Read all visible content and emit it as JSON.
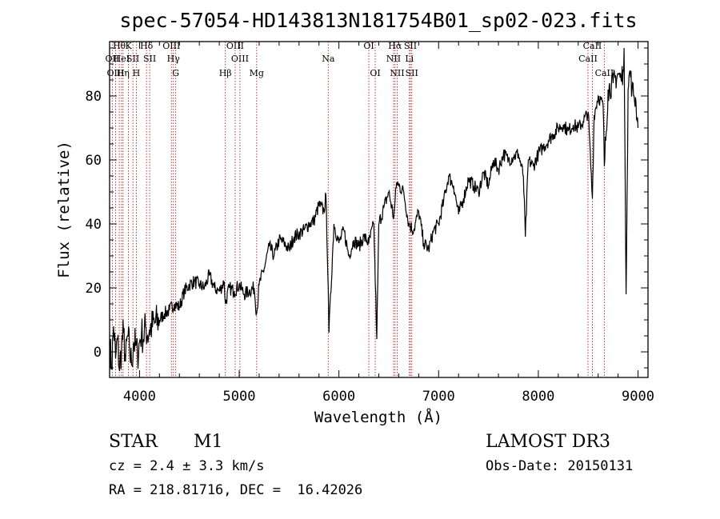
{
  "chart_data": {
    "type": "line",
    "title": "spec-57054-HD143813N181754B01_sp02-023.fits",
    "xlabel": "Wavelength (Å)",
    "ylabel": "Flux (relative)",
    "xlim": [
      3700,
      9100
    ],
    "ylim": [
      -8,
      97
    ],
    "x_ticks": [
      4000,
      5000,
      6000,
      7000,
      8000,
      9000
    ],
    "y_ticks": [
      0,
      20,
      40,
      60,
      80
    ],
    "grid": false,
    "series": [
      {
        "name": "flux",
        "x": [
          3700,
          3720,
          3740,
          3760,
          3780,
          3800,
          3820,
          3840,
          3860,
          3880,
          3900,
          3920,
          3940,
          3960,
          3980,
          4000,
          4020,
          4040,
          4060,
          4080,
          4100,
          4150,
          4200,
          4250,
          4300,
          4350,
          4400,
          4450,
          4500,
          4550,
          4600,
          4650,
          4700,
          4750,
          4800,
          4850,
          4861,
          4900,
          4950,
          5000,
          5050,
          5100,
          5150,
          5175,
          5200,
          5250,
          5300,
          5350,
          5400,
          5450,
          5500,
          5550,
          5600,
          5650,
          5700,
          5750,
          5800,
          5850,
          5870,
          5893,
          5900,
          5950,
          6000,
          6050,
          6100,
          6150,
          6200,
          6250,
          6300,
          6350,
          6380,
          6400,
          6450,
          6500,
          6550,
          6563,
          6580,
          6600,
          6650,
          6700,
          6750,
          6800,
          6850,
          6900,
          6950,
          7000,
          7050,
          7100,
          7150,
          7200,
          7250,
          7300,
          7350,
          7400,
          7450,
          7500,
          7550,
          7600,
          7650,
          7700,
          7750,
          7800,
          7850,
          7870,
          7900,
          7950,
          8000,
          8050,
          8100,
          8150,
          8200,
          8250,
          8300,
          8350,
          8400,
          8450,
          8500,
          8542,
          8560,
          8600,
          8650,
          8662,
          8700,
          8750,
          8800,
          8830,
          8850,
          8860,
          8880,
          8900,
          8920,
          8940,
          8960,
          8980,
          9000
        ],
        "y": [
          3,
          -5,
          8,
          -2,
          4,
          -6,
          2,
          6,
          -3,
          5,
          1,
          -4,
          3,
          2,
          -1,
          3,
          6,
          4,
          8,
          5,
          7,
          9,
          10,
          12,
          13,
          15,
          14,
          19,
          21,
          22,
          21,
          20,
          24,
          20,
          19,
          22,
          15,
          20,
          19,
          21,
          18,
          19,
          20,
          12,
          21,
          26,
          33,
          30,
          35,
          34,
          32,
          36,
          37,
          38,
          40,
          41,
          46,
          44,
          49,
          20,
          6,
          40,
          34,
          38,
          30,
          35,
          33,
          36,
          34,
          40,
          4,
          40,
          45,
          50,
          42,
          47,
          53,
          52,
          50,
          40,
          38,
          44,
          34,
          32,
          38,
          40,
          47,
          55,
          52,
          43,
          48,
          54,
          52,
          50,
          56,
          52,
          60,
          57,
          62,
          60,
          61,
          62,
          55,
          36,
          60,
          58,
          62,
          64,
          66,
          68,
          70,
          71,
          69,
          71,
          70,
          72,
          75,
          48,
          74,
          80,
          77,
          58,
          82,
          84,
          87,
          85,
          88,
          95,
          18,
          82,
          88,
          82,
          80,
          78,
          70
        ]
      }
    ],
    "line_markers": [
      {
        "label": "Hθ",
        "x": 3797,
        "row": 1
      },
      {
        "label": "OII",
        "x": 3727,
        "row": 2
      },
      {
        "label": "OIII",
        "x": 3760,
        "row": 3
      },
      {
        "label": "HeI",
        "x": 3820,
        "row": 2
      },
      {
        "label": "Hη",
        "x": 3835,
        "row": 3
      },
      {
        "label": "K",
        "x": 3889,
        "row": 1
      },
      {
        "label": "SII",
        "x": 3934,
        "row": 2
      },
      {
        "label": "H",
        "x": 3968,
        "row": 3
      },
      {
        "label": "Hδ",
        "x": 4070,
        "row": 1
      },
      {
        "label": "SII",
        "x": 4102,
        "row": 2
      },
      {
        "label": "OIII",
        "x": 4320,
        "row": 1
      },
      {
        "label": "Hγ",
        "x": 4340,
        "row": 2
      },
      {
        "label": "G",
        "x": 4363,
        "row": 3
      },
      {
        "label": "Hβ",
        "x": 4861,
        "row": 3
      },
      {
        "label": "OIII",
        "x": 4959,
        "row": 1
      },
      {
        "label": "OIII",
        "x": 5007,
        "row": 2
      },
      {
        "label": "Mg",
        "x": 5175,
        "row": 3
      },
      {
        "label": "Na",
        "x": 5893,
        "row": 2
      },
      {
        "label": "OI",
        "x": 6300,
        "row": 1
      },
      {
        "label": "OI",
        "x": 6364,
        "row": 3
      },
      {
        "label": "Hα",
        "x": 6563,
        "row": 1
      },
      {
        "label": "NII",
        "x": 6548,
        "row": 2
      },
      {
        "label": "NII",
        "x": 6584,
        "row": 3
      },
      {
        "label": "SII",
        "x": 6717,
        "row": 1
      },
      {
        "label": "Li",
        "x": 6707,
        "row": 2
      },
      {
        "label": "SII",
        "x": 6731,
        "row": 3
      },
      {
        "label": "CaII",
        "x": 8542,
        "row": 1
      },
      {
        "label": "CaII",
        "x": 8498,
        "row": 2
      },
      {
        "label": "CaII",
        "x": 8662,
        "row": 3
      }
    ]
  },
  "info": {
    "object_class": "STAR",
    "subclass": "M1",
    "survey": "LAMOST DR3",
    "redshift": "cz = 2.4 ± 3.3 km/s",
    "obs_date": "Obs-Date: 20150131",
    "coords": "RA = 218.81716, DEC =  16.42026"
  },
  "colors": {
    "spectrum": "#000000",
    "line_marker": "#b22222",
    "axis": "#000000"
  }
}
